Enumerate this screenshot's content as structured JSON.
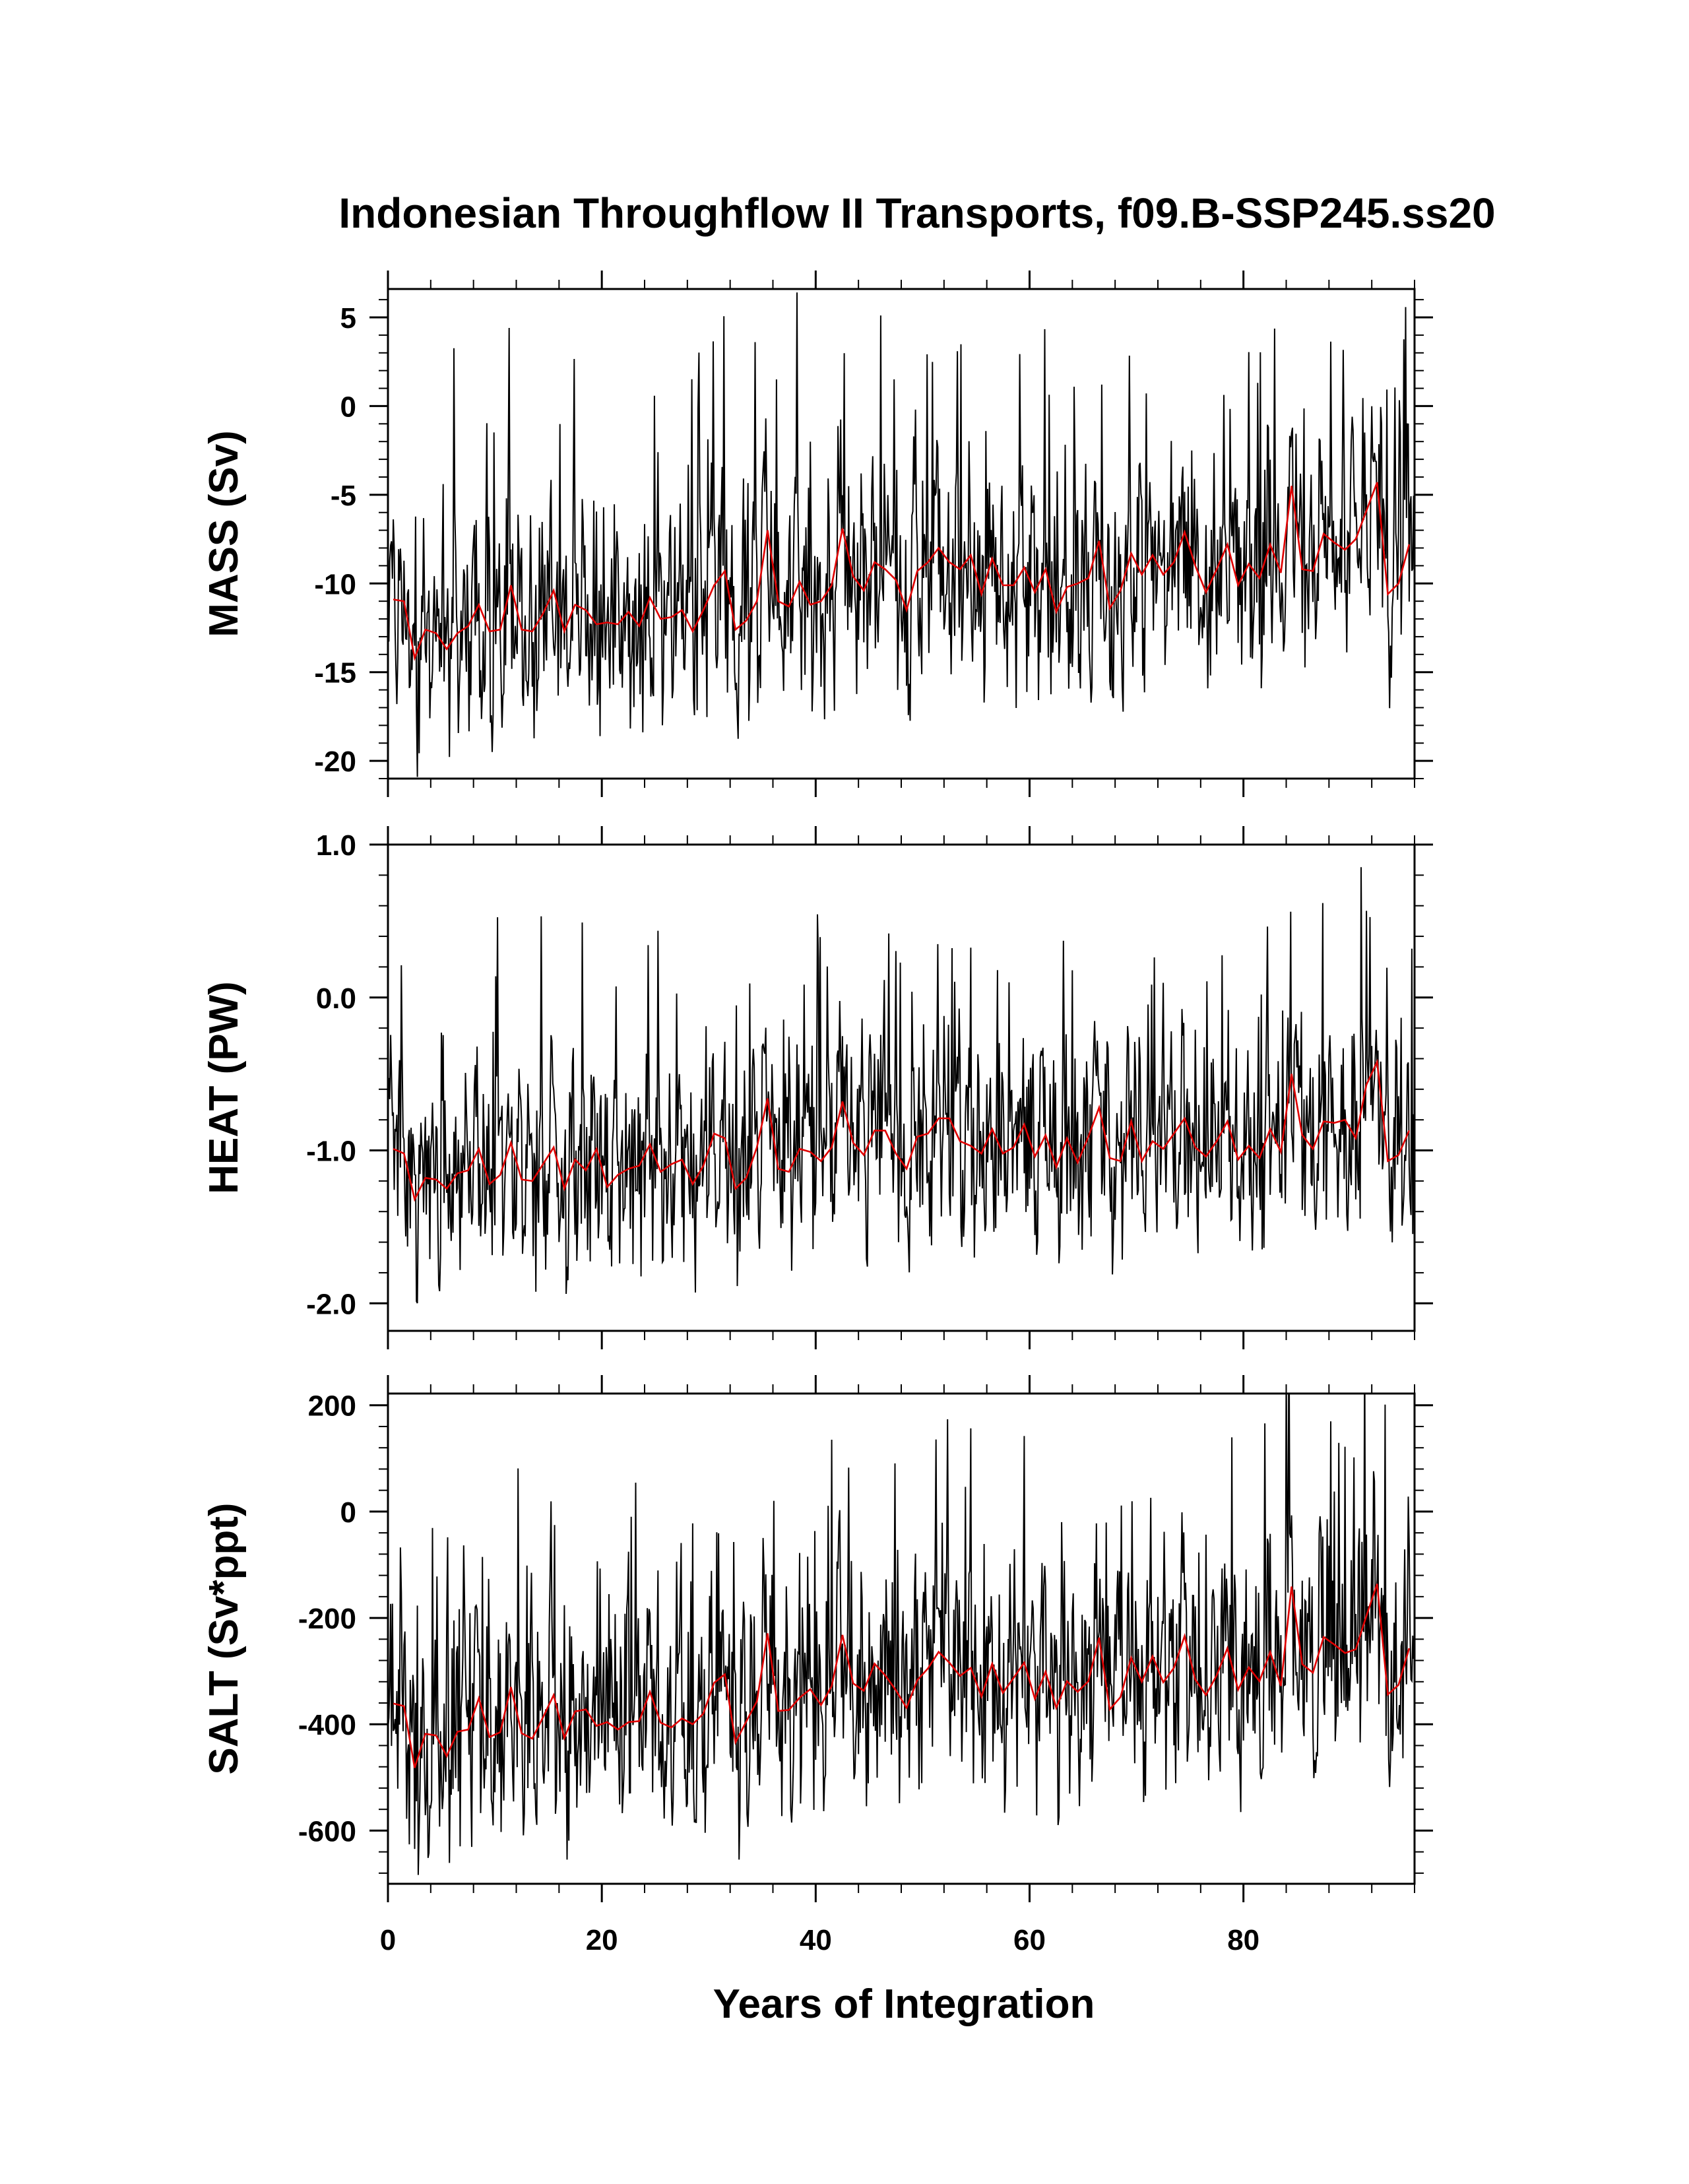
{
  "chart_data": {
    "type": "line",
    "title": "Indonesian Throughflow II Transports, f09.B-SSP245.ss20",
    "xlabel": "Years of Integration",
    "xlim": [
      0,
      96
    ],
    "x_ticks": [
      0,
      20,
      40,
      60,
      80
    ],
    "x_tick_labels": [
      "0",
      "20",
      "40",
      "60",
      "80"
    ],
    "series_colors": {
      "monthly": "#000000",
      "annual_mean": "#e00000"
    },
    "panels": [
      {
        "key": "mass",
        "ylabel": "MASS (Sv)",
        "ylim": [
          -21,
          6.6
        ],
        "yticks": [
          5,
          0,
          -5,
          -10,
          -15,
          -20
        ],
        "ytick_labels": [
          "5",
          "0",
          "-5",
          "-10",
          "-15",
          "-20"
        ],
        "ymid": [
          -11.5,
          -12.4,
          -12.2,
          -11.5,
          -10.9,
          -10.2,
          -9.7,
          -9.3,
          -9.0,
          -8.5
        ],
        "amp": 4.2,
        "annual_mean_years": [
          0.5,
          1.5,
          2.5,
          3.5,
          4.5,
          5.5,
          6.5,
          7.5,
          8.5,
          9.5,
          10.5,
          11.5,
          12.5,
          13.5,
          14.5,
          15.5,
          16.5,
          17.5,
          18.5,
          19.5,
          20.5,
          21.5,
          22.5,
          23.5,
          24.5,
          25.5,
          26.5,
          27.5,
          28.5,
          29.5,
          30.5,
          31.5,
          32.5,
          33.5,
          34.5,
          35.5,
          36.5,
          37.5,
          38.5,
          39.5,
          40.5,
          41.5,
          42.5,
          43.5,
          44.5,
          45.5,
          46.5,
          47.5,
          48.5,
          49.5,
          50.5,
          51.5,
          52.5,
          53.5,
          54.5,
          55.5,
          56.5,
          57.5,
          58.5,
          59.5,
          60.5,
          61.5,
          62.5,
          63.5,
          64.5,
          65.5,
          66.5,
          67.5,
          68.5,
          69.5,
          70.5,
          71.5,
          72.5,
          73.5,
          74.5,
          75.5,
          76.5,
          77.5,
          78.5,
          79.5,
          80.5,
          81.5,
          82.5,
          83.5,
          84.5,
          85.5,
          86.5,
          87.5,
          88.5,
          89.5,
          90.5,
          91.5,
          92.5,
          93.5,
          94.5,
          95.5
        ],
        "annual_mean_values": [
          -10.9,
          -11.0,
          -14.2,
          -12.6,
          -12.8,
          -13.7,
          -12.8,
          -12.4,
          -11.2,
          -12.7,
          -12.6,
          -10.1,
          -12.6,
          -12.7,
          -11.7,
          -10.4,
          -12.7,
          -11.2,
          -11.5,
          -12.3,
          -12.2,
          -12.3,
          -11.6,
          -12.4,
          -10.8,
          -12.0,
          -11.9,
          -11.5,
          -12.7,
          -11.5,
          -10.1,
          -9.3,
          -12.6,
          -12.1,
          -11.0,
          -7.0,
          -11.0,
          -11.3,
          -9.9,
          -11.2,
          -11.0,
          -10.1,
          -6.9,
          -9.6,
          -10.4,
          -8.8,
          -9.2,
          -9.8,
          -11.5,
          -9.3,
          -8.8,
          -8.0,
          -8.8,
          -9.2,
          -8.4,
          -10.6,
          -8.6,
          -10.1,
          -10.1,
          -9.1,
          -10.5,
          -9.2,
          -11.6,
          -10.2,
          -10.0,
          -9.7,
          -7.6,
          -11.4,
          -10.4,
          -8.3,
          -9.5,
          -8.4,
          -9.5,
          -8.8,
          -7.1,
          -9.0,
          -10.5,
          -9.2,
          -7.8,
          -10.1,
          -8.9,
          -9.7,
          -7.8,
          -9.4,
          -4.5,
          -9.2,
          -9.3,
          -7.2,
          -7.7,
          -8.1,
          -7.5,
          -5.9,
          -4.3,
          -10.6,
          -10.0,
          -7.8
        ]
      },
      {
        "key": "heat",
        "ylabel": "HEAT (PW)",
        "ylim": [
          -2.18,
          1.0
        ],
        "yticks": [
          1.0,
          0.0,
          -1.0,
          -2.0
        ],
        "ytick_labels": [
          "1.0",
          "0.0",
          "-1.0",
          "-2.0"
        ],
        "ymid": [
          -1.15,
          -1.2,
          -1.18,
          -1.12,
          -1.08,
          -1.03,
          -0.98,
          -0.94,
          -0.92,
          -0.88
        ],
        "amp": 0.45,
        "annual_mean_years": [
          0.5,
          1.5,
          2.5,
          3.5,
          4.5,
          5.5,
          6.5,
          7.5,
          8.5,
          9.5,
          10.5,
          11.5,
          12.5,
          13.5,
          14.5,
          15.5,
          16.5,
          17.5,
          18.5,
          19.5,
          20.5,
          21.5,
          22.5,
          23.5,
          24.5,
          25.5,
          26.5,
          27.5,
          28.5,
          29.5,
          30.5,
          31.5,
          32.5,
          33.5,
          34.5,
          35.5,
          36.5,
          37.5,
          38.5,
          39.5,
          40.5,
          41.5,
          42.5,
          43.5,
          44.5,
          45.5,
          46.5,
          47.5,
          48.5,
          49.5,
          50.5,
          51.5,
          52.5,
          53.5,
          54.5,
          55.5,
          56.5,
          57.5,
          58.5,
          59.5,
          60.5,
          61.5,
          62.5,
          63.5,
          64.5,
          65.5,
          66.5,
          67.5,
          68.5,
          69.5,
          70.5,
          71.5,
          72.5,
          73.5,
          74.5,
          75.5,
          76.5,
          77.5,
          78.5,
          79.5,
          80.5,
          81.5,
          82.5,
          83.5,
          84.5,
          85.5,
          86.5,
          87.5,
          88.5,
          89.5,
          90.5,
          91.5,
          92.5,
          93.5,
          94.5,
          95.5
        ],
        "annual_mean_values": [
          -0.99,
          -1.02,
          -1.32,
          -1.18,
          -1.19,
          -1.25,
          -1.15,
          -1.13,
          -0.99,
          -1.22,
          -1.16,
          -0.95,
          -1.19,
          -1.2,
          -1.09,
          -0.98,
          -1.25,
          -1.06,
          -1.13,
          -0.99,
          -1.24,
          -1.16,
          -1.12,
          -1.1,
          -0.96,
          -1.14,
          -1.09,
          -1.06,
          -1.22,
          -1.1,
          -0.89,
          -0.92,
          -1.25,
          -1.18,
          -0.98,
          -0.66,
          -1.12,
          -1.14,
          -0.99,
          -1.01,
          -1.07,
          -0.98,
          -0.68,
          -0.95,
          -1.03,
          -0.87,
          -0.87,
          -1.02,
          -1.12,
          -0.91,
          -0.89,
          -0.79,
          -0.79,
          -0.94,
          -0.97,
          -1.02,
          -0.86,
          -1.02,
          -0.98,
          -0.83,
          -1.04,
          -0.9,
          -1.11,
          -0.92,
          -1.08,
          -0.91,
          -0.72,
          -1.05,
          -1.07,
          -0.81,
          -1.07,
          -0.94,
          -0.99,
          -0.89,
          -0.79,
          -0.98,
          -1.04,
          -0.94,
          -0.81,
          -1.06,
          -0.97,
          -1.05,
          -0.86,
          -1.01,
          -0.5,
          -0.9,
          -0.99,
          -0.81,
          -0.82,
          -0.8,
          -0.92,
          -0.57,
          -0.42,
          -1.07,
          -1.03,
          -0.87
        ]
      },
      {
        "key": "salt",
        "ylabel": "SALT (Sv*ppt)",
        "ylim": [
          -700,
          222
        ],
        "yticks": [
          200,
          0,
          -200,
          -400,
          -600
        ],
        "ytick_labels": [
          "200",
          "0",
          "-200",
          "-400",
          "-600"
        ],
        "ymid": [
          -395,
          -420,
          -412,
          -390,
          -370,
          -345,
          -325,
          -312,
          -305,
          -290
        ],
        "amp": 140,
        "annual_mean_years": [
          0.5,
          1.5,
          2.5,
          3.5,
          4.5,
          5.5,
          6.5,
          7.5,
          8.5,
          9.5,
          10.5,
          11.5,
          12.5,
          13.5,
          14.5,
          15.5,
          16.5,
          17.5,
          18.5,
          19.5,
          20.5,
          21.5,
          22.5,
          23.5,
          24.5,
          25.5,
          26.5,
          27.5,
          28.5,
          29.5,
          30.5,
          31.5,
          32.5,
          33.5,
          34.5,
          35.5,
          36.5,
          37.5,
          38.5,
          39.5,
          40.5,
          41.5,
          42.5,
          43.5,
          44.5,
          45.5,
          46.5,
          47.5,
          48.5,
          49.5,
          50.5,
          51.5,
          52.5,
          53.5,
          54.5,
          55.5,
          56.5,
          57.5,
          58.5,
          59.5,
          60.5,
          61.5,
          62.5,
          63.5,
          64.5,
          65.5,
          66.5,
          67.5,
          68.5,
          69.5,
          70.5,
          71.5,
          72.5,
          73.5,
          74.5,
          75.5,
          76.5,
          77.5,
          78.5,
          79.5,
          80.5,
          81.5,
          82.5,
          83.5,
          84.5,
          85.5,
          86.5,
          87.5,
          88.5,
          89.5,
          90.5,
          91.5,
          92.5,
          93.5,
          94.5,
          95.5
        ],
        "annual_mean_values": [
          -361,
          -366,
          -482,
          -418,
          -421,
          -460,
          -414,
          -410,
          -351,
          -424,
          -415,
          -330,
          -417,
          -427,
          -387,
          -345,
          -426,
          -376,
          -372,
          -403,
          -396,
          -410,
          -396,
          -394,
          -339,
          -397,
          -406,
          -389,
          -400,
          -380,
          -322,
          -306,
          -434,
          -395,
          -357,
          -229,
          -375,
          -373,
          -350,
          -334,
          -364,
          -328,
          -232,
          -323,
          -337,
          -286,
          -308,
          -336,
          -369,
          -317,
          -295,
          -264,
          -284,
          -309,
          -294,
          -348,
          -286,
          -341,
          -313,
          -284,
          -352,
          -301,
          -369,
          -319,
          -339,
          -319,
          -237,
          -372,
          -349,
          -275,
          -320,
          -272,
          -321,
          -294,
          -234,
          -316,
          -345,
          -308,
          -257,
          -335,
          -293,
          -319,
          -264,
          -328,
          -141,
          -287,
          -303,
          -236,
          -250,
          -266,
          -259,
          -196,
          -136,
          -344,
          -326,
          -257
        ]
      }
    ],
    "monthly_extremes_note_years": [
      0.9,
      2.8,
      48.8,
      92.5,
      93.3
    ]
  }
}
